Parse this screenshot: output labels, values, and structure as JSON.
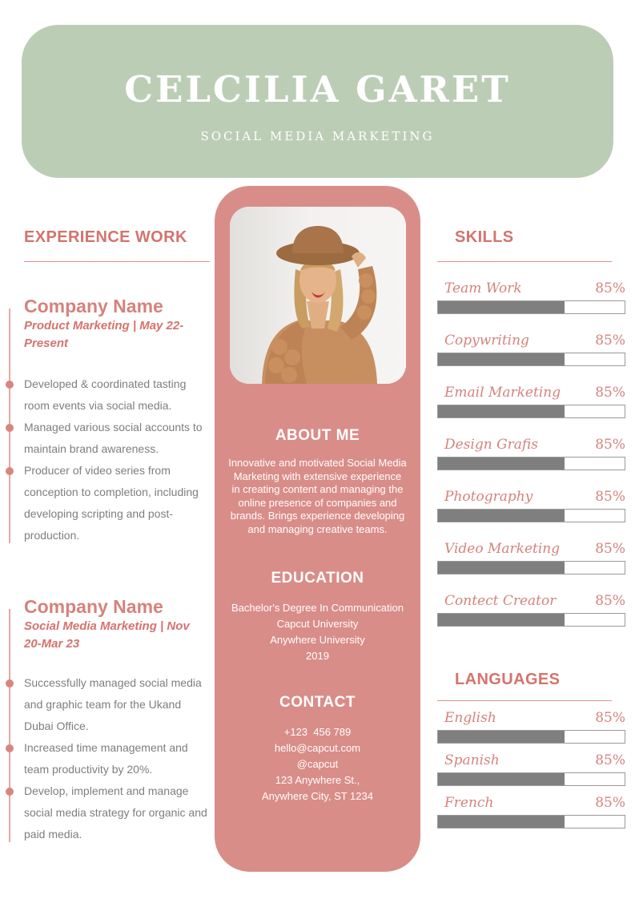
{
  "header": {
    "name": "CELCILIA GARET",
    "title": "SOCIAL MEDIA MARKETING"
  },
  "experience": {
    "heading": "EXPERIENCE WORK",
    "jobs": [
      {
        "company": "Company Name",
        "meta": "Product Marketing | May 22-Present",
        "bullets": [
          "Developed & coordinated tasting room events via social media.",
          "Managed various social accounts to maintain brand awareness.",
          "Producer of video series from conception to completion, including developing scripting and post-production."
        ]
      },
      {
        "company": "Company Name",
        "meta": "Social Media Marketing | Nov 20-Mar 23",
        "bullets": [
          "Successfully managed social media and graphic team for the Ukand Dubai Office.",
          "Increased time management and team productivity by 20%.",
          "Develop, implement and manage social media strategy for organic and paid media."
        ]
      }
    ]
  },
  "profile": {
    "photo_description": "Portrait photo: smiling woman wearing a brown wide-brim hat and tan knitted cardigan on a light background",
    "about_heading": "ABOUT ME",
    "about_text": "Innovative and motivated Social Media Marketing with extensive experience in creating content and managing the online presence of companies and brands. Brings experience developing and managing creative teams.",
    "education_heading": "EDUCATION",
    "education_lines": [
      "Bachelor's Degree In Communication",
      "Capcut University",
      "Anywhere University",
      "2019"
    ],
    "contact_heading": "CONTACT",
    "contact_lines": [
      "+123  456 789",
      "hello@capcut.com",
      "@capcut",
      "123 Anywhere St.,",
      "Anywhere City, ST 1234"
    ]
  },
  "skills": {
    "heading": "SKILLS",
    "items": [
      {
        "label": "Team Work",
        "percent": "85%",
        "fill": 68
      },
      {
        "label": "Copywriting",
        "percent": "85%",
        "fill": 68
      },
      {
        "label": "Email Marketing",
        "percent": "85%",
        "fill": 68
      },
      {
        "label": "Design Grafis",
        "percent": "85%",
        "fill": 68
      },
      {
        "label": "Photography",
        "percent": "85%",
        "fill": 68
      },
      {
        "label": "Video Marketing",
        "percent": "85%",
        "fill": 68
      },
      {
        "label": "Contect Creator",
        "percent": "85%",
        "fill": 68
      }
    ]
  },
  "languages": {
    "heading": "LANGUAGES",
    "items": [
      {
        "label": "English",
        "percent": "85%",
        "fill": 68
      },
      {
        "label": "Spanish",
        "percent": "85%",
        "fill": 68
      },
      {
        "label": "French",
        "percent": "85%",
        "fill": 68
      }
    ]
  },
  "colors": {
    "banner_green": "#bccdb5",
    "panel_pink": "#d98d88",
    "accent": "#d4736d",
    "accent_soft": "#d5827c",
    "bar_fill_gray": "#7f7f7f",
    "bar_border_gray": "#9a9a9a",
    "body_text_gray": "#7e7e81"
  }
}
